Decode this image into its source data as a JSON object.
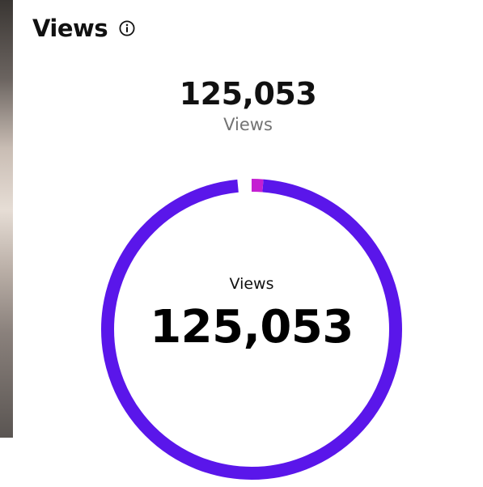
{
  "header": {
    "title": "Views",
    "info_icon": "info-circle-icon"
  },
  "summary": {
    "value": "125,053",
    "label": "Views"
  },
  "donut": {
    "center_label": "Views",
    "center_value": "125,053",
    "colors": {
      "primary": "#5a16ea",
      "accent": "#c41fd2"
    }
  }
}
